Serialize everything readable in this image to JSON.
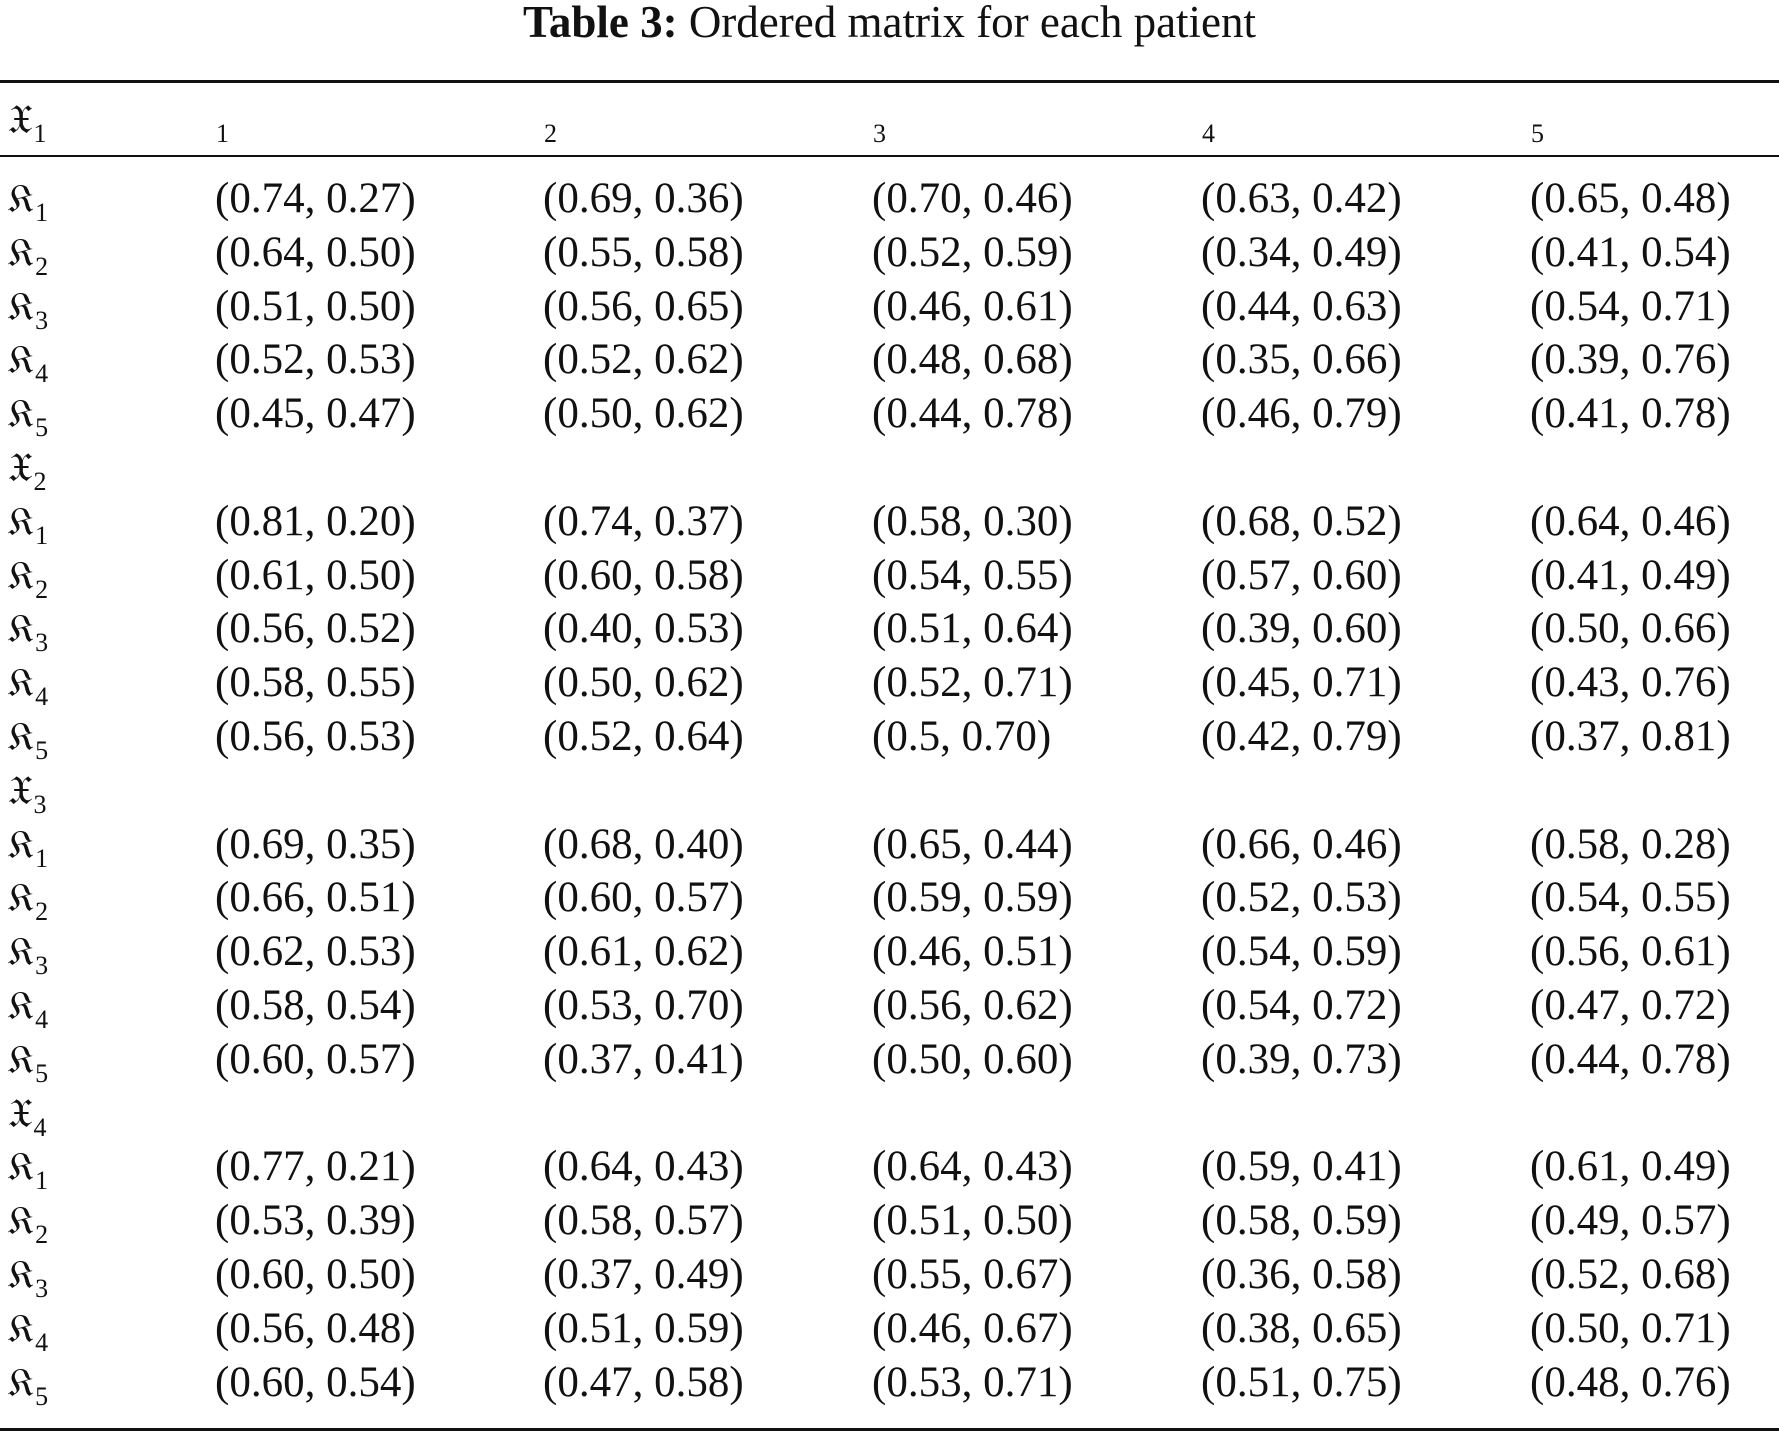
{
  "caption": {
    "label": "Table 3:",
    "text": "Ordered matrix for each patient"
  },
  "header": [
    {
      "sym": "𝔛",
      "sub": "1"
    },
    {
      "sym": "𝔋",
      "sub": "1"
    },
    {
      "sym": "𝔋",
      "sub": "2"
    },
    {
      "sym": "𝔋",
      "sub": "3"
    },
    {
      "sym": "𝔋",
      "sub": "4"
    },
    {
      "sym": "𝔋",
      "sub": "5"
    }
  ],
  "rows": [
    {
      "sym": "𝔎",
      "sub": "1",
      "values": [
        "(0.74, 0.27)",
        "(0.69, 0.36)",
        "(0.70, 0.46)",
        "(0.63, 0.42)",
        "(0.65, 0.48)"
      ]
    },
    {
      "sym": "𝔎",
      "sub": "2",
      "values": [
        "(0.64, 0.50)",
        "(0.55, 0.58)",
        "(0.52, 0.59)",
        "(0.34, 0.49)",
        "(0.41, 0.54)"
      ]
    },
    {
      "sym": "𝔎",
      "sub": "3",
      "values": [
        "(0.51, 0.50)",
        "(0.56, 0.65)",
        "(0.46, 0.61)",
        "(0.44, 0.63)",
        "(0.54, 0.71)"
      ]
    },
    {
      "sym": "𝔎",
      "sub": "4",
      "values": [
        "(0.52, 0.53)",
        "(0.52, 0.62)",
        "(0.48, 0.68)",
        "(0.35, 0.66)",
        "(0.39, 0.76)"
      ]
    },
    {
      "sym": "𝔎",
      "sub": "5",
      "values": [
        "(0.45, 0.47)",
        "(0.50, 0.62)",
        "(0.44, 0.78)",
        "(0.46, 0.79)",
        "(0.41, 0.78)"
      ]
    },
    {
      "sym": "𝔛",
      "sub": "2",
      "values": []
    },
    {
      "sym": "𝔎",
      "sub": "1",
      "values": [
        "(0.81, 0.20)",
        "(0.74, 0.37)",
        "(0.58, 0.30)",
        "(0.68, 0.52)",
        "(0.64, 0.46)"
      ]
    },
    {
      "sym": "𝔎",
      "sub": "2",
      "values": [
        "(0.61, 0.50)",
        "(0.60, 0.58)",
        "(0.54, 0.55)",
        "(0.57, 0.60)",
        "(0.41, 0.49)"
      ]
    },
    {
      "sym": "𝔎",
      "sub": "3",
      "values": [
        "(0.56, 0.52)",
        "(0.40, 0.53)",
        "(0.51, 0.64)",
        "(0.39, 0.60)",
        "(0.50, 0.66)"
      ]
    },
    {
      "sym": "𝔎",
      "sub": "4",
      "values": [
        "(0.58, 0.55)",
        "(0.50, 0.62)",
        "(0.52, 0.71)",
        "(0.45, 0.71)",
        "(0.43, 0.76)"
      ]
    },
    {
      "sym": "𝔎",
      "sub": "5",
      "values": [
        "(0.56, 0.53)",
        "(0.52, 0.64)",
        "(0.5, 0.70)",
        "(0.42, 0.79)",
        "(0.37, 0.81)"
      ]
    },
    {
      "sym": "𝔛",
      "sub": "3",
      "values": []
    },
    {
      "sym": "𝔎",
      "sub": "1",
      "values": [
        "(0.69, 0.35)",
        "(0.68, 0.40)",
        "(0.65, 0.44)",
        "(0.66, 0.46)",
        "(0.58, 0.28)"
      ]
    },
    {
      "sym": "𝔎",
      "sub": "2",
      "values": [
        "(0.66, 0.51)",
        "(0.60, 0.57)",
        "(0.59, 0.59)",
        "(0.52, 0.53)",
        "(0.54, 0.55)"
      ]
    },
    {
      "sym": "𝔎",
      "sub": "3",
      "values": [
        "(0.62, 0.53)",
        "(0.61, 0.62)",
        "(0.46, 0.51)",
        "(0.54, 0.59)",
        "(0.56, 0.61)"
      ]
    },
    {
      "sym": "𝔎",
      "sub": "4",
      "values": [
        "(0.58, 0.54)",
        "(0.53, 0.70)",
        "(0.56, 0.62)",
        "(0.54, 0.72)",
        "(0.47, 0.72)"
      ]
    },
    {
      "sym": "𝔎",
      "sub": "5",
      "values": [
        "(0.60, 0.57)",
        "(0.37, 0.41)",
        "(0.50, 0.60)",
        "(0.39, 0.73)",
        "(0.44, 0.78)"
      ]
    },
    {
      "sym": "𝔛",
      "sub": "4",
      "values": []
    },
    {
      "sym": "𝔎",
      "sub": "1",
      "values": [
        "(0.77, 0.21)",
        "(0.64, 0.43)",
        "(0.64, 0.43)",
        "(0.59, 0.41)",
        "(0.61, 0.49)"
      ]
    },
    {
      "sym": "𝔎",
      "sub": "2",
      "values": [
        "(0.53, 0.39)",
        "(0.58, 0.57)",
        "(0.51, 0.50)",
        "(0.58, 0.59)",
        "(0.49, 0.57)"
      ]
    },
    {
      "sym": "𝔎",
      "sub": "3",
      "values": [
        "(0.60, 0.50)",
        "(0.37, 0.49)",
        "(0.55, 0.67)",
        "(0.36, 0.58)",
        "(0.52, 0.68)"
      ]
    },
    {
      "sym": "𝔎",
      "sub": "4",
      "values": [
        "(0.56, 0.48)",
        "(0.51, 0.59)",
        "(0.46, 0.67)",
        "(0.38, 0.65)",
        "(0.50, 0.71)"
      ]
    },
    {
      "sym": "𝔎",
      "sub": "5",
      "values": [
        "(0.60, 0.54)",
        "(0.47, 0.58)",
        "(0.53, 0.71)",
        "(0.51, 0.75)",
        "(0.48, 0.76)"
      ]
    }
  ]
}
